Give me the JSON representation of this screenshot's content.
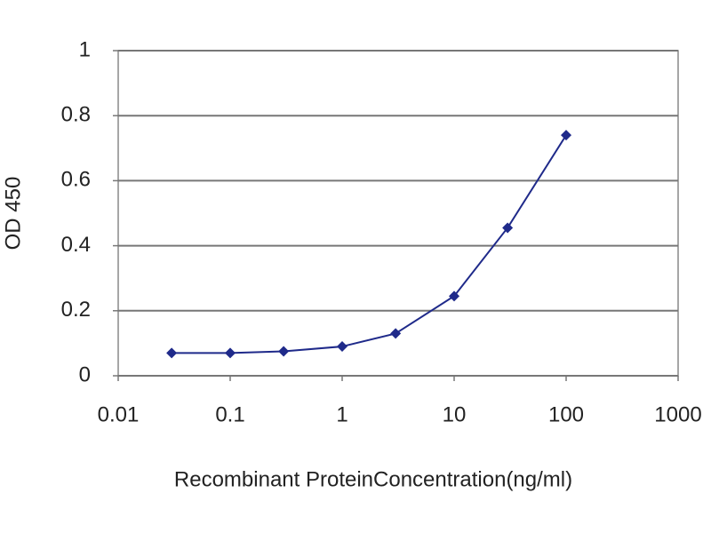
{
  "chart_data": {
    "type": "line",
    "xlabel": "Recombinant ProteinConcentration(ng/ml)",
    "ylabel": "OD 450",
    "x": [
      0.03,
      0.1,
      0.3,
      1,
      3,
      10,
      30,
      100
    ],
    "values": [
      0.07,
      0.07,
      0.075,
      0.09,
      0.13,
      0.245,
      0.455,
      0.74
    ],
    "color": "#1f2a8a",
    "xscale": "log",
    "xlim": [
      0.01,
      1000
    ],
    "xticks": [
      0.01,
      0.1,
      1,
      10,
      100,
      1000
    ],
    "ylim": [
      0,
      1
    ],
    "yticks": [
      0,
      0.2,
      0.4,
      0.6,
      0.8,
      1
    ],
    "grid": true
  }
}
